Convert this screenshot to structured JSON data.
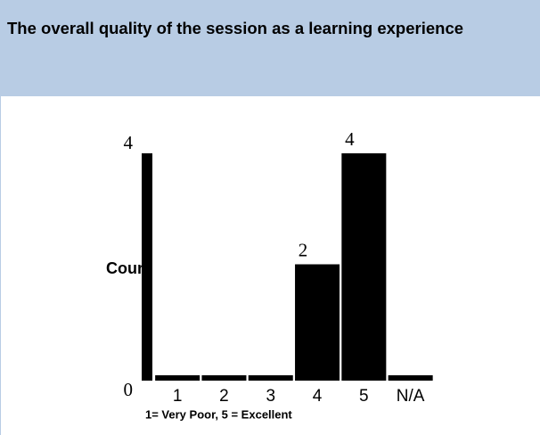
{
  "chart_data": {
    "type": "bar",
    "title": "The overall quality of the session as a learning experience",
    "categories": [
      "1",
      "2",
      "3",
      "4",
      "5",
      "N/A"
    ],
    "values": [
      0,
      0,
      0,
      2,
      4,
      0
    ],
    "color": "#000000",
    "ylabel": "Count",
    "xlabel": "1= Very Poor, 5 = Excellent",
    "ylim": [
      0,
      4
    ],
    "yticks": [
      0,
      4
    ]
  }
}
